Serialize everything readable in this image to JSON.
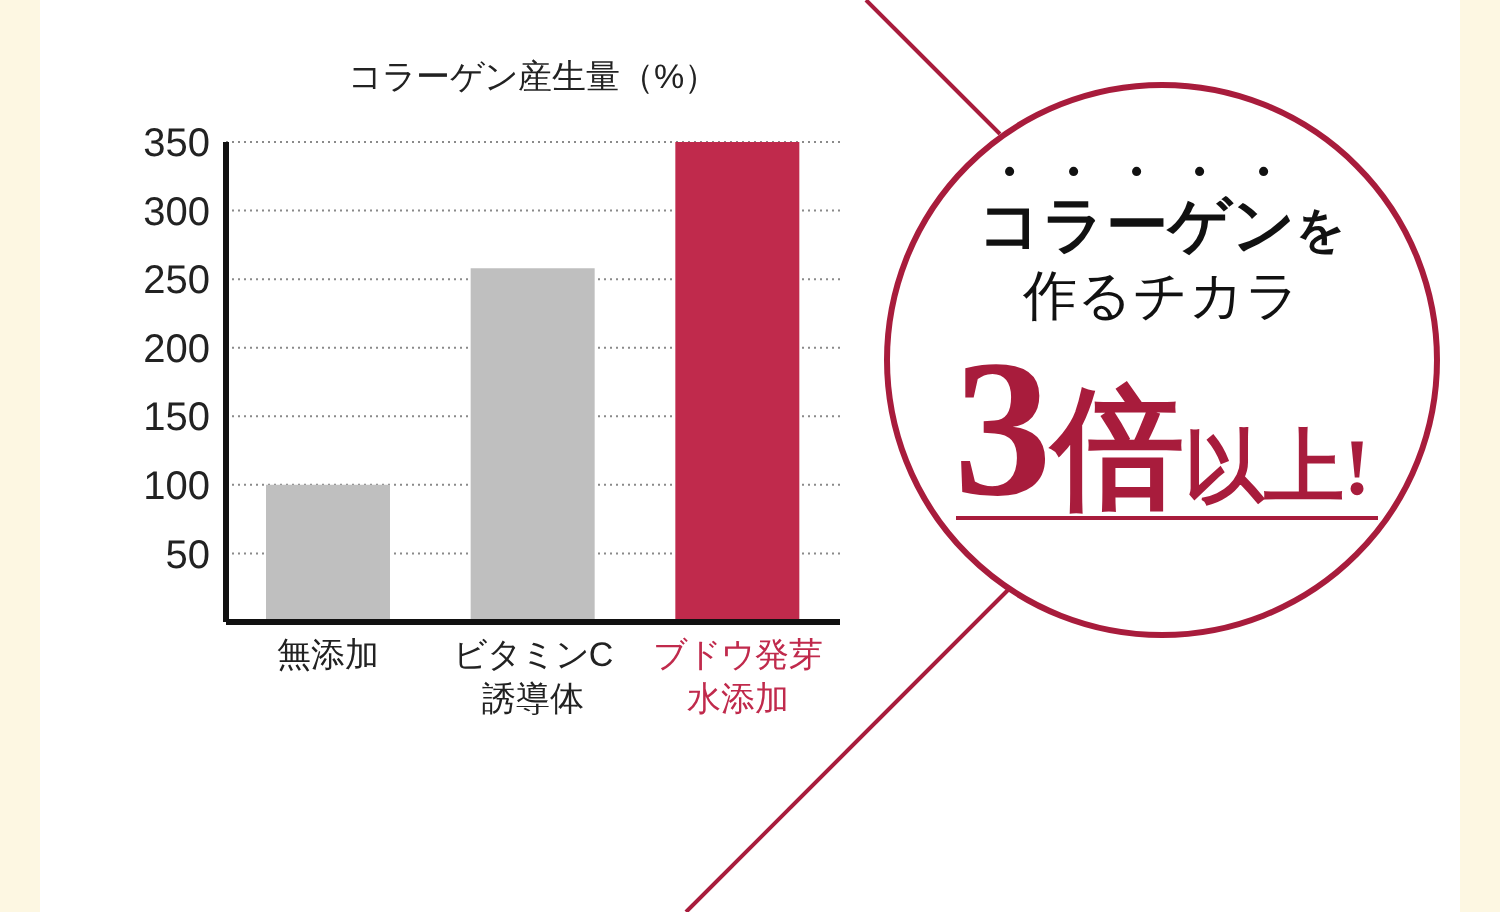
{
  "chart_data": {
    "type": "bar",
    "title": "コラーゲン産生量（%）",
    "categories": [
      "無添加",
      "ビタミンC誘導体",
      "ブドウ発芽水添加"
    ],
    "values": [
      100,
      258,
      350
    ],
    "colors": [
      "#bfbfbf",
      "#bfbfbf",
      "#c02a4c"
    ],
    "ylim": [
      0,
      350
    ],
    "yticks": [
      50,
      100,
      150,
      200,
      250,
      300,
      350
    ],
    "grid": "y",
    "annotations": [
      "コラーゲン",
      "を",
      "作るチカラ",
      "3倍",
      "以上!"
    ]
  }
}
